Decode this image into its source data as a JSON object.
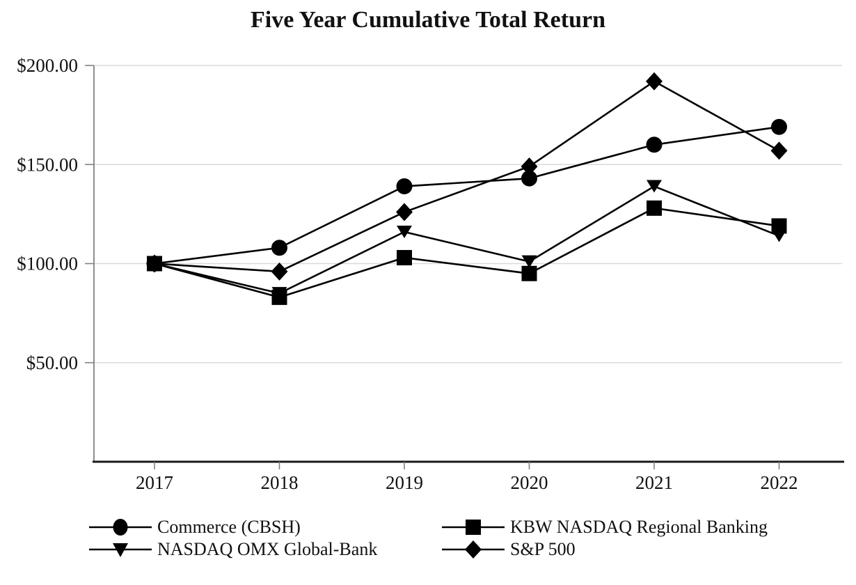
{
  "title": "Five Year Cumulative Total Return",
  "chart_data": {
    "type": "line",
    "title": "Five Year Cumulative Total Return",
    "x_categories": [
      "2017",
      "2018",
      "2019",
      "2020",
      "2021",
      "2022"
    ],
    "series": [
      {
        "name": "Commerce (CBSH)",
        "marker": "circle",
        "color": "#000000",
        "values": [
          100,
          108,
          139,
          143,
          160,
          169
        ]
      },
      {
        "name": "KBW NASDAQ Regional Banking",
        "marker": "square",
        "color": "#000000",
        "values": [
          100,
          83,
          103,
          95,
          128,
          119
        ]
      },
      {
        "name": "NASDAQ OMX Global-Bank",
        "marker": "triangle-down",
        "color": "#000000",
        "values": [
          100,
          85,
          116,
          101,
          139,
          114
        ]
      },
      {
        "name": "S&P 500",
        "marker": "diamond",
        "color": "#000000",
        "values": [
          100,
          96,
          126,
          149,
          192,
          157
        ]
      }
    ],
    "y_axis": {
      "min": 0,
      "max": 200,
      "ticks": [
        {
          "value": 200,
          "label": "$200.00"
        },
        {
          "value": 150,
          "label": "$150.00"
        },
        {
          "value": 100,
          "label": "$100.00"
        },
        {
          "value": 50,
          "label": "$50.00"
        }
      ]
    },
    "grid": true,
    "legend_position": "bottom",
    "legend_columns": 2
  },
  "colors": {
    "series": "#000000",
    "gridline": "#d9d9d9",
    "axis_gray": "#808080",
    "baseline": "#1a1a1a",
    "text": "#111111",
    "background": "#ffffff"
  }
}
